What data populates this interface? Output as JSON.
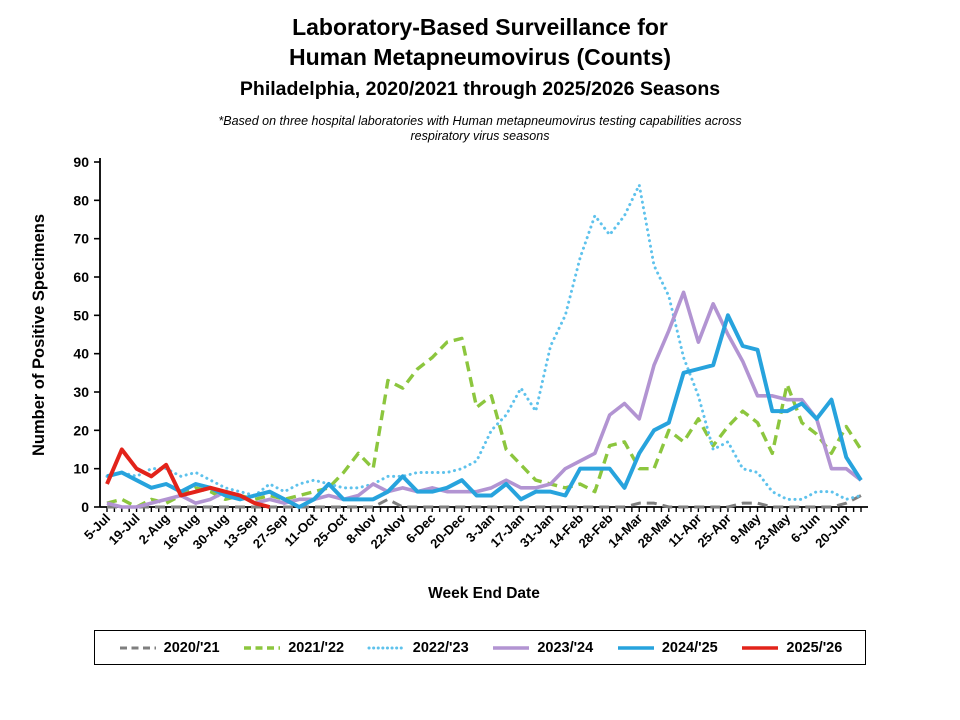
{
  "title": {
    "line1": "Laboratory-Based Surveillance for",
    "line2": "Human Metapneumovirus (Counts)",
    "line3": "Philadelphia, 2020/2021 through 2025/2026 Seasons"
  },
  "subtitle": "*Based on three hospital laboratories with Human metapneumovirus testing capabilities across\nrespiratory virus seasons",
  "chart_data": {
    "type": "line",
    "xlabel": "Week End Date",
    "ylabel": "Number of Positive Specimens",
    "ylim": [
      0,
      90
    ],
    "ytick_interval": 10,
    "grid": false,
    "legend_position": "bottom",
    "weeks_total": 52,
    "label_every_n_weeks": 2,
    "x_tick_labels": [
      "5-Jul",
      "19-Jul",
      "2-Aug",
      "16-Aug",
      "30-Aug",
      "13-Sep",
      "27-Sep",
      "11-Oct",
      "25-Oct",
      "8-Nov",
      "22-Nov",
      "6-Dec",
      "20-Dec",
      "3-Jan",
      "17-Jan",
      "31-Jan",
      "14-Feb",
      "28-Feb",
      "14-Mar",
      "28-Mar",
      "11-Apr",
      "25-Apr",
      "9-May",
      "23-May",
      "6-Jun",
      "20-Jun"
    ],
    "series": [
      {
        "name": "2020/'21",
        "color": "#7F7F7F",
        "style": "dashed",
        "width": 3,
        "values": [
          0,
          0,
          0,
          0,
          0,
          0,
          0,
          0,
          0,
          0,
          0,
          0,
          0,
          0,
          0,
          0,
          0,
          0,
          0,
          2,
          0,
          0,
          0,
          0,
          0,
          0,
          0,
          0,
          0,
          0,
          0,
          0,
          0,
          0,
          0,
          0,
          1,
          1,
          0,
          0,
          0,
          0,
          0,
          1,
          1,
          0,
          0,
          0,
          0,
          0,
          1,
          3
        ]
      },
      {
        "name": "2021/'22",
        "color": "#8CC63E",
        "style": "dashed",
        "width": 3.4,
        "values": [
          1,
          2,
          0,
          2,
          1,
          3,
          5,
          4,
          2,
          3,
          2,
          3,
          2,
          3,
          4,
          5,
          9,
          14,
          10,
          33,
          31,
          36,
          39,
          43,
          44,
          26,
          29,
          15,
          11,
          7,
          6,
          5,
          6,
          4,
          16,
          17,
          10,
          10,
          20,
          17,
          23,
          16,
          21,
          25,
          22,
          14,
          32,
          22,
          19,
          14,
          21,
          15
        ]
      },
      {
        "name": "2022/'23",
        "color": "#5EC2EC",
        "style": "dotted",
        "width": 3,
        "values": [
          8,
          9,
          8,
          10,
          10,
          8,
          9,
          7,
          5,
          4,
          3,
          6,
          4,
          6,
          7,
          6,
          5,
          5,
          6,
          8,
          8,
          9,
          9,
          9,
          10,
          12,
          20,
          24,
          31,
          25,
          42,
          50,
          65,
          76,
          71,
          76,
          84,
          63,
          55,
          39,
          29,
          15,
          17,
          10,
          9,
          4,
          2,
          2,
          4,
          4,
          2,
          3
        ]
      },
      {
        "name": "2023/'24",
        "color": "#B294D2",
        "style": "solid",
        "width": 3.6,
        "values": [
          1,
          0,
          0,
          1,
          2,
          3,
          1,
          2,
          4,
          3,
          1,
          2,
          1,
          2,
          2,
          3,
          2,
          3,
          6,
          4,
          5,
          4,
          5,
          4,
          4,
          4,
          5,
          7,
          5,
          5,
          6,
          10,
          12,
          14,
          24,
          27,
          23,
          37,
          46,
          56,
          43,
          53,
          45,
          38,
          29,
          29,
          28,
          28,
          23,
          10,
          10,
          7
        ]
      },
      {
        "name": "2024/'25",
        "color": "#27A3DD",
        "style": "solid",
        "width": 4,
        "values": [
          8,
          9,
          7,
          5,
          6,
          4,
          6,
          5,
          3,
          2,
          3,
          4,
          2,
          0,
          2,
          6,
          2,
          2,
          2,
          4,
          8,
          4,
          4,
          5,
          7,
          3,
          3,
          6,
          2,
          4,
          4,
          3,
          10,
          10,
          10,
          5,
          14,
          20,
          22,
          35,
          36,
          37,
          50,
          42,
          41,
          25,
          25,
          27,
          23,
          28,
          13,
          7
        ]
      },
      {
        "name": "2025/'26",
        "color": "#E2231A",
        "style": "solid",
        "width": 4,
        "values": [
          6,
          15,
          10,
          8,
          11,
          3,
          4,
          5,
          4,
          3,
          1,
          0
        ]
      }
    ]
  }
}
